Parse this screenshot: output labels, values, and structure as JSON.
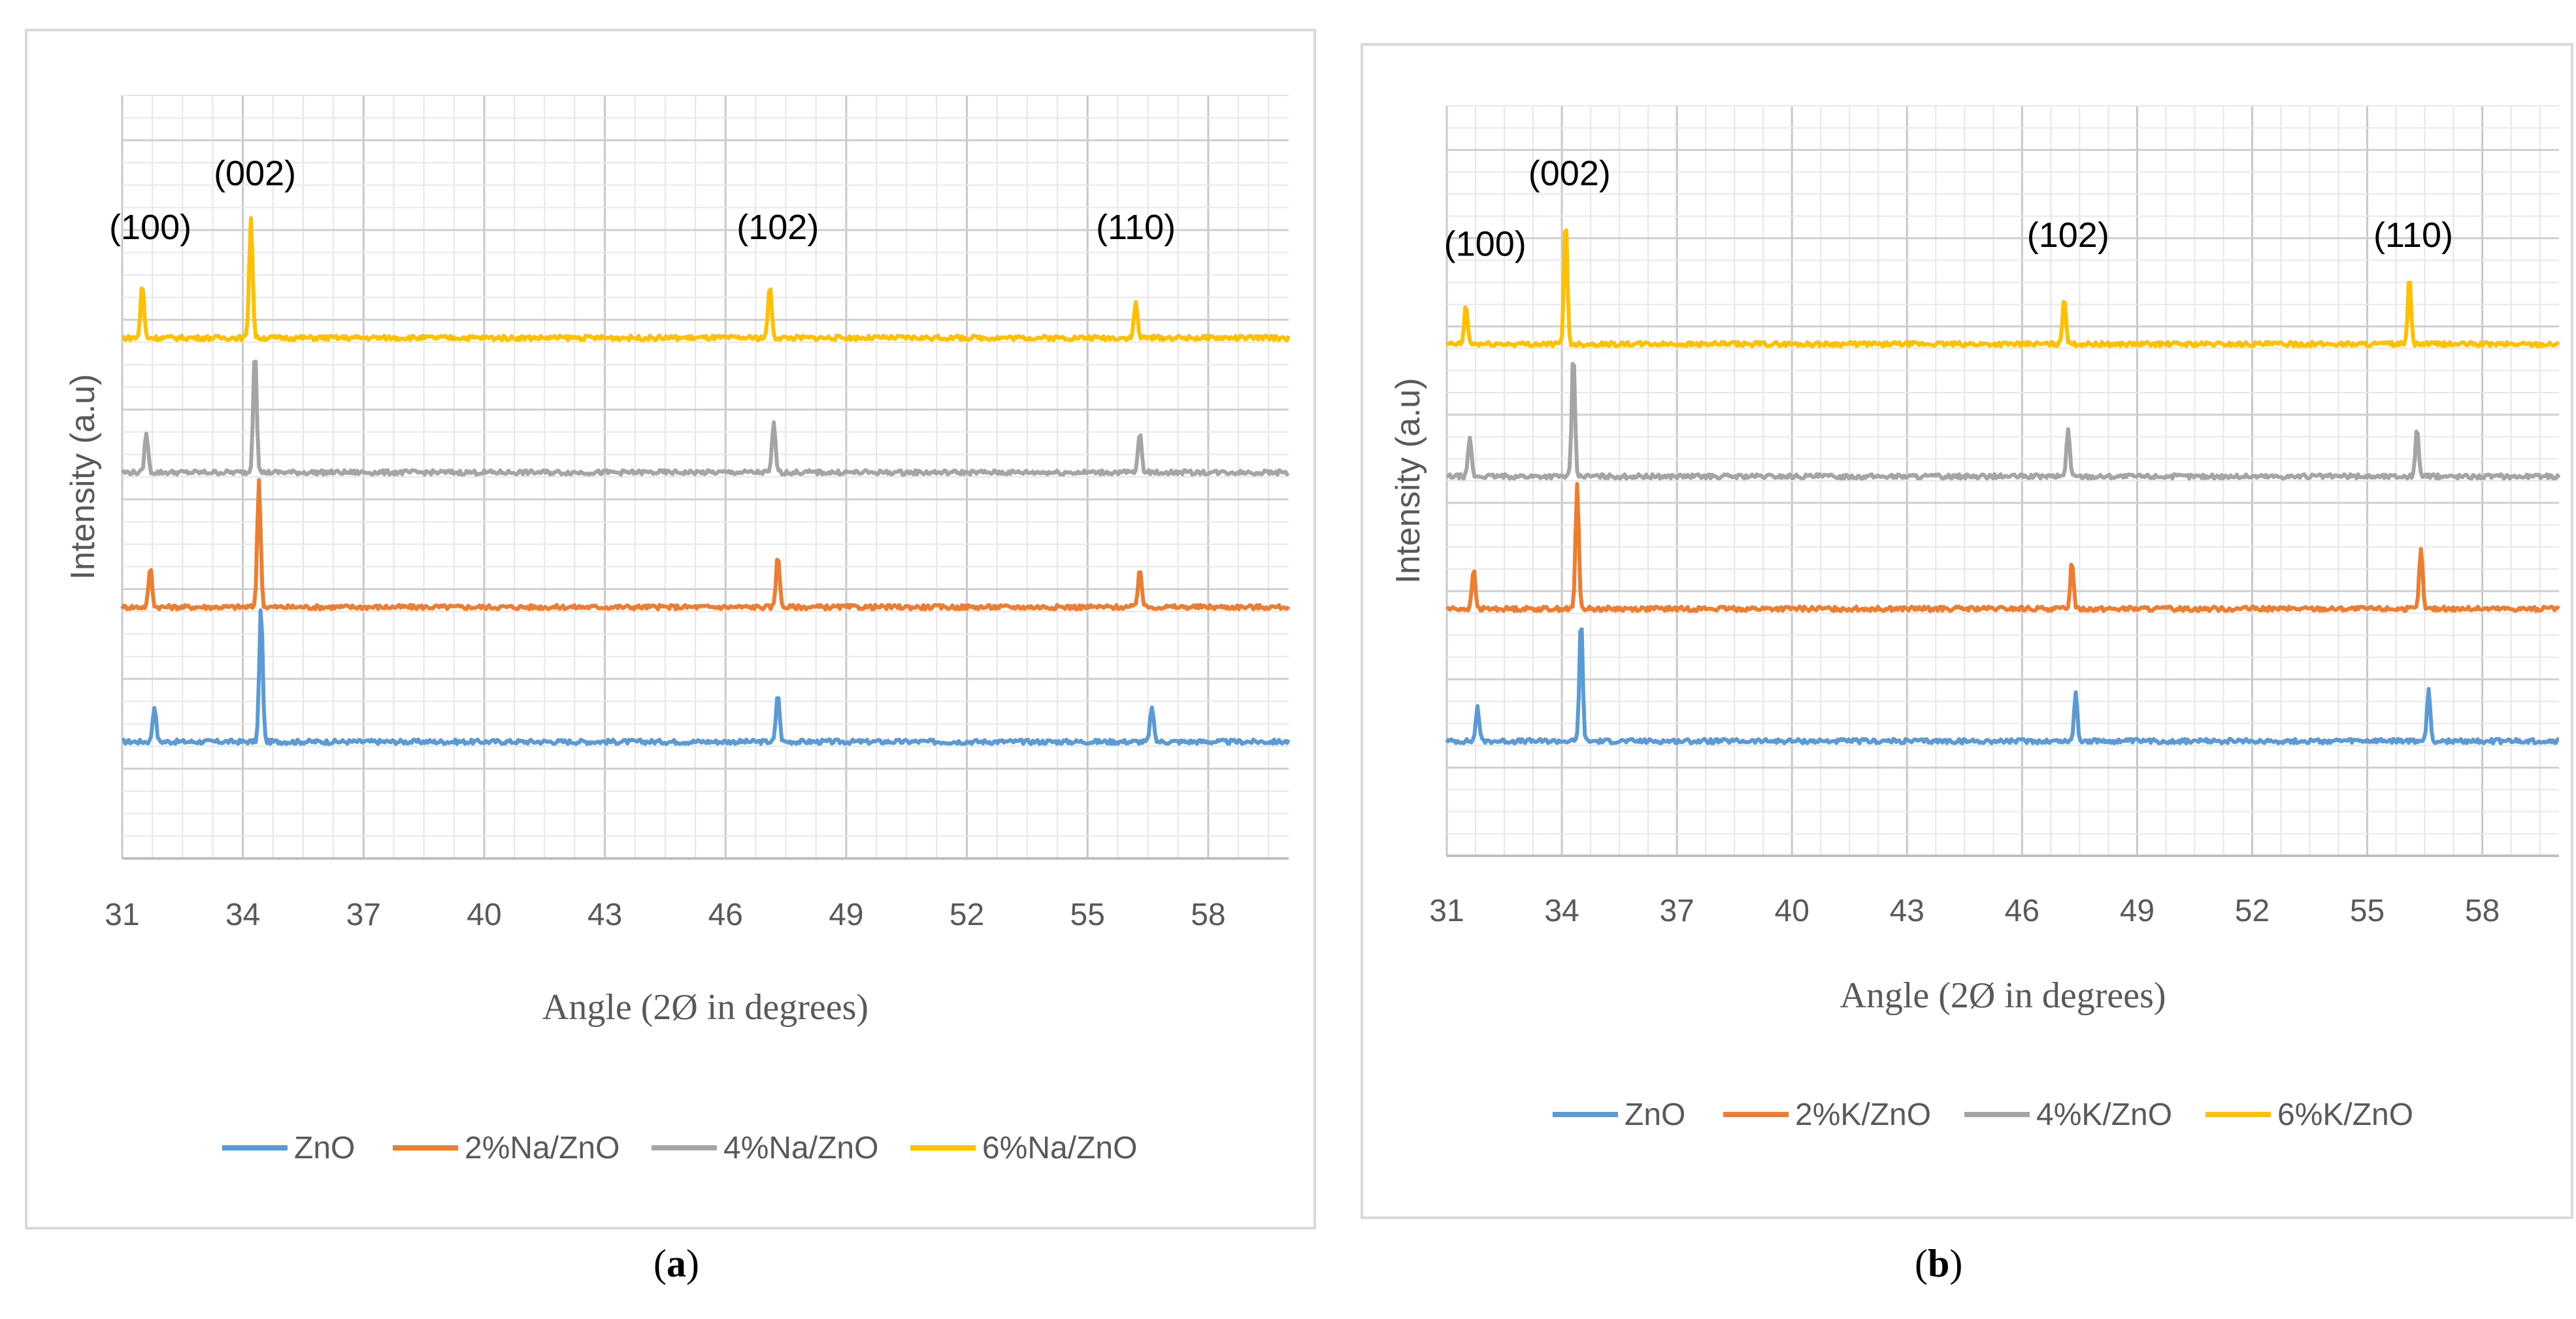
{
  "chart_data": [
    {
      "type": "line",
      "panel": "(a)",
      "xlabel": "Angle (2Ø in degrees)",
      "ylabel": "Intensity (a.u)",
      "xlim": [
        31,
        60
      ],
      "xticks": [
        "31",
        "34",
        "37",
        "40",
        "43",
        "46",
        "49",
        "52",
        "55",
        "58"
      ],
      "ylim": [
        0,
        8.5
      ],
      "grid": true,
      "legend_position": "bottom",
      "peak_labels": [
        {
          "text": "(100)",
          "x": 31.7,
          "y": 6.9
        },
        {
          "text": "(002)",
          "x": 34.3,
          "y": 7.5
        },
        {
          "text": "(102)",
          "x": 47.3,
          "y": 6.9
        },
        {
          "text": "(110)",
          "x": 56.2,
          "y": 6.9
        }
      ],
      "series": [
        {
          "name": "ZnO",
          "color": "#5b9bd5",
          "baseline": 1.3,
          "peaks": [
            {
              "x": 31.8,
              "h": 0.4
            },
            {
              "x": 34.45,
              "h": 1.5
            },
            {
              "x": 47.3,
              "h": 0.55
            },
            {
              "x": 56.6,
              "h": 0.4
            }
          ]
        },
        {
          "name": "2%Na/ZnO",
          "color": "#ed7d31",
          "baseline": 2.8,
          "peaks": [
            {
              "x": 31.7,
              "h": 0.45
            },
            {
              "x": 34.4,
              "h": 1.4
            },
            {
              "x": 47.3,
              "h": 0.6
            },
            {
              "x": 56.3,
              "h": 0.45
            }
          ]
        },
        {
          "name": "4%Na/ZnO",
          "color": "#a5a5a5",
          "baseline": 4.3,
          "peaks": [
            {
              "x": 31.6,
              "h": 0.45
            },
            {
              "x": 34.3,
              "h": 1.4
            },
            {
              "x": 47.2,
              "h": 0.55
            },
            {
              "x": 56.3,
              "h": 0.45
            }
          ]
        },
        {
          "name": "6%Na/ZnO",
          "color": "#ffc000",
          "baseline": 5.8,
          "peaks": [
            {
              "x": 31.5,
              "h": 0.6
            },
            {
              "x": 34.2,
              "h": 1.35
            },
            {
              "x": 47.1,
              "h": 0.6
            },
            {
              "x": 56.2,
              "h": 0.4
            }
          ]
        }
      ]
    },
    {
      "type": "line",
      "panel": "(b)",
      "xlabel": "Angle (2Ø in degrees)",
      "ylabel": "Intensity (a.u)",
      "xlim": [
        31,
        60
      ],
      "xticks": [
        "31",
        "34",
        "37",
        "40",
        "43",
        "46",
        "49",
        "52",
        "55",
        "58"
      ],
      "ylim": [
        0,
        8.5
      ],
      "grid": true,
      "legend_position": "bottom",
      "peak_labels": [
        {
          "text": "(100)",
          "x": 32.0,
          "y": 6.8
        },
        {
          "text": "(002)",
          "x": 34.2,
          "y": 7.6
        },
        {
          "text": "(102)",
          "x": 47.2,
          "y": 6.9
        },
        {
          "text": "(110)",
          "x": 56.2,
          "y": 6.9
        }
      ],
      "series": [
        {
          "name": "ZnO",
          "color": "#5b9bd5",
          "baseline": 1.3,
          "peaks": [
            {
              "x": 31.8,
              "h": 0.4
            },
            {
              "x": 34.5,
              "h": 1.4
            },
            {
              "x": 47.4,
              "h": 0.55
            },
            {
              "x": 56.6,
              "h": 0.6
            }
          ]
        },
        {
          "name": "2%K/ZnO",
          "color": "#ed7d31",
          "baseline": 2.8,
          "peaks": [
            {
              "x": 31.7,
              "h": 0.45
            },
            {
              "x": 34.4,
              "h": 1.4
            },
            {
              "x": 47.3,
              "h": 0.55
            },
            {
              "x": 56.4,
              "h": 0.7
            }
          ]
        },
        {
          "name": "4%K/ZnO",
          "color": "#a5a5a5",
          "baseline": 4.3,
          "peaks": [
            {
              "x": 31.6,
              "h": 0.45
            },
            {
              "x": 34.3,
              "h": 1.4
            },
            {
              "x": 47.2,
              "h": 0.55
            },
            {
              "x": 56.3,
              "h": 0.55
            }
          ]
        },
        {
          "name": "6%K/ZnO",
          "color": "#ffc000",
          "baseline": 5.8,
          "peaks": [
            {
              "x": 31.5,
              "h": 0.45
            },
            {
              "x": 34.1,
              "h": 1.45
            },
            {
              "x": 47.1,
              "h": 0.55
            },
            {
              "x": 56.1,
              "h": 0.75
            }
          ]
        }
      ]
    }
  ],
  "captions": [
    "a",
    "b"
  ]
}
